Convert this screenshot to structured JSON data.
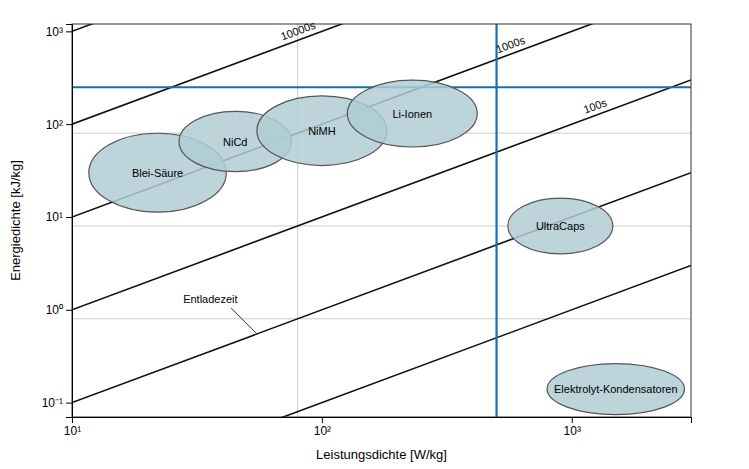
{
  "chart_data": {
    "type": "ragone",
    "xlabel": "Leistungsdichte [W/kg]",
    "ylabel": "Energiedichte [kJ/kg]",
    "log": true,
    "xlim": [
      10,
      3000
    ],
    "ylim": [
      0.07,
      1200
    ],
    "xticks": [
      {
        "value": 10,
        "label": "10¹"
      },
      {
        "value": 100,
        "label": "10²"
      },
      {
        "value": 1000,
        "label": "10³"
      }
    ],
    "yticks": [
      {
        "value": 0.1,
        "label": "10⁻¹"
      },
      {
        "value": 1,
        "label": "10⁰"
      },
      {
        "value": 10,
        "label": "10¹"
      },
      {
        "value": 100,
        "label": "10²"
      },
      {
        "value": 1000,
        "label": "10³"
      }
    ],
    "diagonals": {
      "color": "#111111",
      "values": [
        100000,
        10000,
        1000,
        100,
        10,
        1
      ],
      "labels": [
        null,
        "10000s",
        "1000s",
        "100s",
        null,
        null
      ]
    },
    "hlines": [
      80,
      8,
      0.8
    ],
    "vlines": [
      80,
      500
    ],
    "reference_lines": {
      "color": "#1a6fa8",
      "y": [
        250
      ],
      "x": [
        500
      ]
    },
    "color": "#b0cdd4",
    "series": [
      {
        "name": "Blei-Säure",
        "x": 22,
        "y": 30,
        "width": 0.55,
        "height": 0.85
      },
      {
        "name": "NiCd",
        "x": 45,
        "y": 65,
        "width": 0.45,
        "height": 0.65
      },
      {
        "name": "NiMH",
        "x": 100,
        "y": 85,
        "width": 0.52,
        "height": 0.75
      },
      {
        "name": "Li-Ionen",
        "x": 230,
        "y": 130,
        "width": 0.52,
        "height": 0.72
      },
      {
        "name": "UltraCaps",
        "x": 900,
        "y": 8,
        "width": 0.42,
        "height": 0.6
      },
      {
        "name": "Elektrolyt-Kondensatoren",
        "x": 1500,
        "y": 0.14,
        "width": 0.55,
        "height": 0.55
      }
    ],
    "annotations": [
      {
        "text": "Entladezeit",
        "x": 55,
        "y": 0.55
      }
    ]
  }
}
